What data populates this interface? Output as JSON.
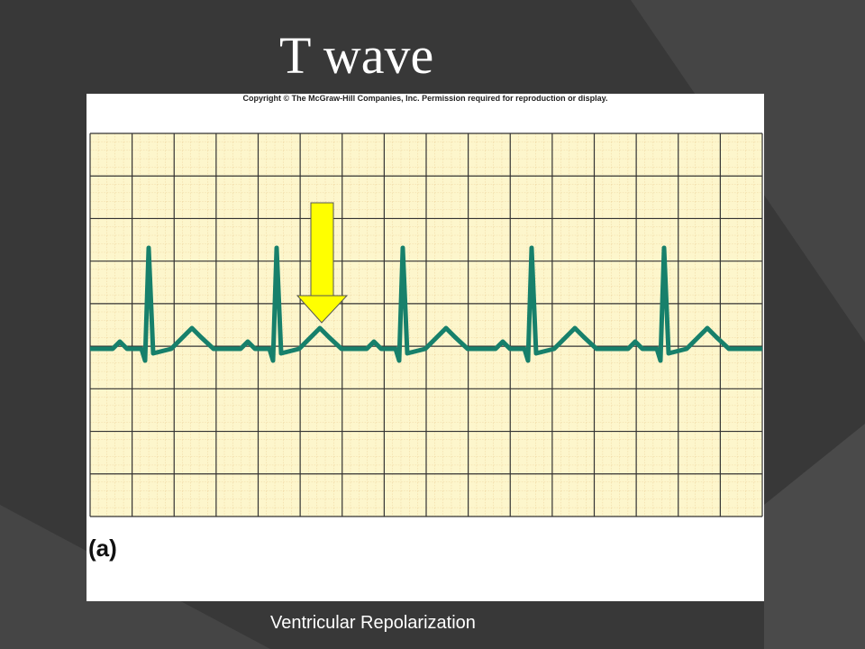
{
  "header": {
    "title": "T wave"
  },
  "figure": {
    "copyright": "Copyright © The McGraw-Hill Companies, Inc. Permission required for reproduction or display.",
    "panel_label": "(a)"
  },
  "caption": "Ventricular Repolarization"
}
